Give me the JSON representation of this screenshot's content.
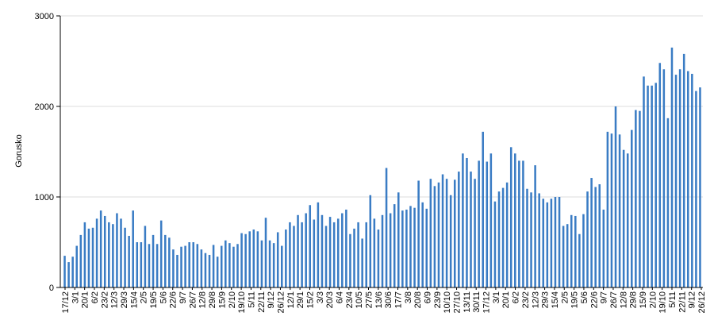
{
  "chart_data": {
    "type": "bar",
    "title": "",
    "xlabel": "",
    "ylabel": "Gorusko",
    "ylim": [
      0,
      3000
    ],
    "yticks": [
      0,
      1000,
      2000,
      3000
    ],
    "grid": "horizontal",
    "bar_color": "#3a7cc4",
    "tick_labels": [
      "17/12",
      "3/1",
      "20/1",
      "6/2",
      "23/2",
      "12/3",
      "29/3",
      "15/4",
      "2/5",
      "19/5",
      "5/6",
      "22/6",
      "9/7",
      "26/7",
      "12/8",
      "29/8",
      "15/9",
      "2/10",
      "19/10",
      "5/11",
      "22/11",
      "9/12",
      "26/12",
      "12/1",
      "29/1",
      "15/2",
      "3/3",
      "20/3",
      "6/4",
      "23/4",
      "10/5",
      "27/5",
      "13/6",
      "30/6",
      "17/7",
      "3/8",
      "20/8",
      "6/9",
      "23/9",
      "10/10",
      "27/10",
      "13/11",
      "30/11",
      "17/12",
      "3/1",
      "20/1",
      "6/2",
      "23/2",
      "12/3",
      "29/3",
      "15/4",
      "2/5",
      "19/5",
      "5/6",
      "22/6",
      "9/7",
      "26/7",
      "12/8",
      "29/8",
      "15/9",
      "2/10",
      "19/10",
      "5/11",
      "22/11",
      "9/12",
      "26/12"
    ],
    "values": [
      350,
      280,
      340,
      460,
      580,
      720,
      650,
      660,
      760,
      850,
      790,
      720,
      700,
      820,
      760,
      660,
      570,
      850,
      500,
      500,
      680,
      480,
      580,
      480,
      740,
      580,
      550,
      420,
      360,
      450,
      460,
      500,
      500,
      480,
      420,
      380,
      360,
      470,
      340,
      460,
      520,
      490,
      450,
      480,
      600,
      590,
      620,
      640,
      620,
      520,
      770,
      520,
      490,
      610,
      460,
      640,
      720,
      680,
      800,
      720,
      820,
      910,
      750,
      940,
      800,
      680,
      780,
      720,
      760,
      820,
      860,
      590,
      650,
      720,
      540,
      720,
      1020,
      760,
      640,
      800,
      1320,
      820,
      920,
      1050,
      850,
      860,
      900,
      880,
      1180,
      940,
      870,
      1200,
      1120,
      1160,
      1250,
      1200,
      1020,
      1190,
      1280,
      1480,
      1430,
      1280,
      1200,
      1400,
      1720,
      1390,
      1480,
      950,
      1060,
      1100,
      1160,
      1550,
      1480,
      1400,
      1400,
      1090,
      1050,
      1350,
      1040,
      980,
      940,
      980,
      1000,
      1000,
      680,
      700,
      800,
      790,
      590,
      810,
      1060,
      1210,
      1110,
      1140,
      860,
      1720,
      1700,
      2000,
      1690,
      1520,
      1480,
      1740,
      1960,
      1950,
      2330,
      2230,
      2230,
      2260,
      2480,
      2410,
      1870,
      2650,
      2350,
      2410,
      2580,
      2390,
      2360,
      2170,
      2210
    ]
  }
}
